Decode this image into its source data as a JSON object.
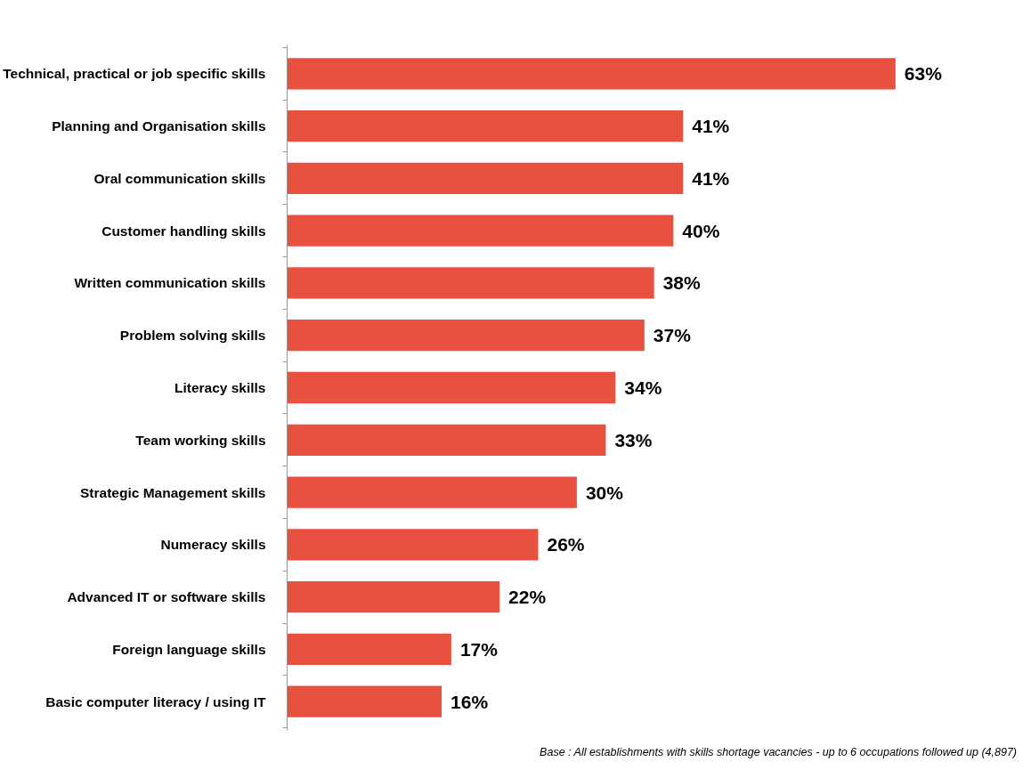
{
  "chart_data": {
    "type": "bar",
    "orientation": "horizontal",
    "categories": [
      "Technical, practical or job specific skills",
      "Planning and Organisation skills",
      "Oral communication skills",
      "Customer handling skills",
      "Written communication skills",
      "Problem solving skills",
      "Literacy skills",
      "Team working skills",
      "Strategic Management skills",
      "Numeracy skills",
      "Advanced IT or software skills",
      "Foreign language skills",
      "Basic computer literacy / using IT"
    ],
    "values": [
      63,
      41,
      41,
      40,
      38,
      37,
      34,
      33,
      30,
      26,
      22,
      17,
      16
    ],
    "value_labels": [
      "63%",
      "41%",
      "41%",
      "40%",
      "38%",
      "37%",
      "34%",
      "33%",
      "30%",
      "26%",
      "22%",
      "17%",
      "16%"
    ],
    "color": "#e85040",
    "tick_labels": "y",
    "grid": false,
    "annotations": [
      "Base : All establishments with skills shortage vacancies - up to 6 occupations followed up (4,897)"
    ]
  }
}
